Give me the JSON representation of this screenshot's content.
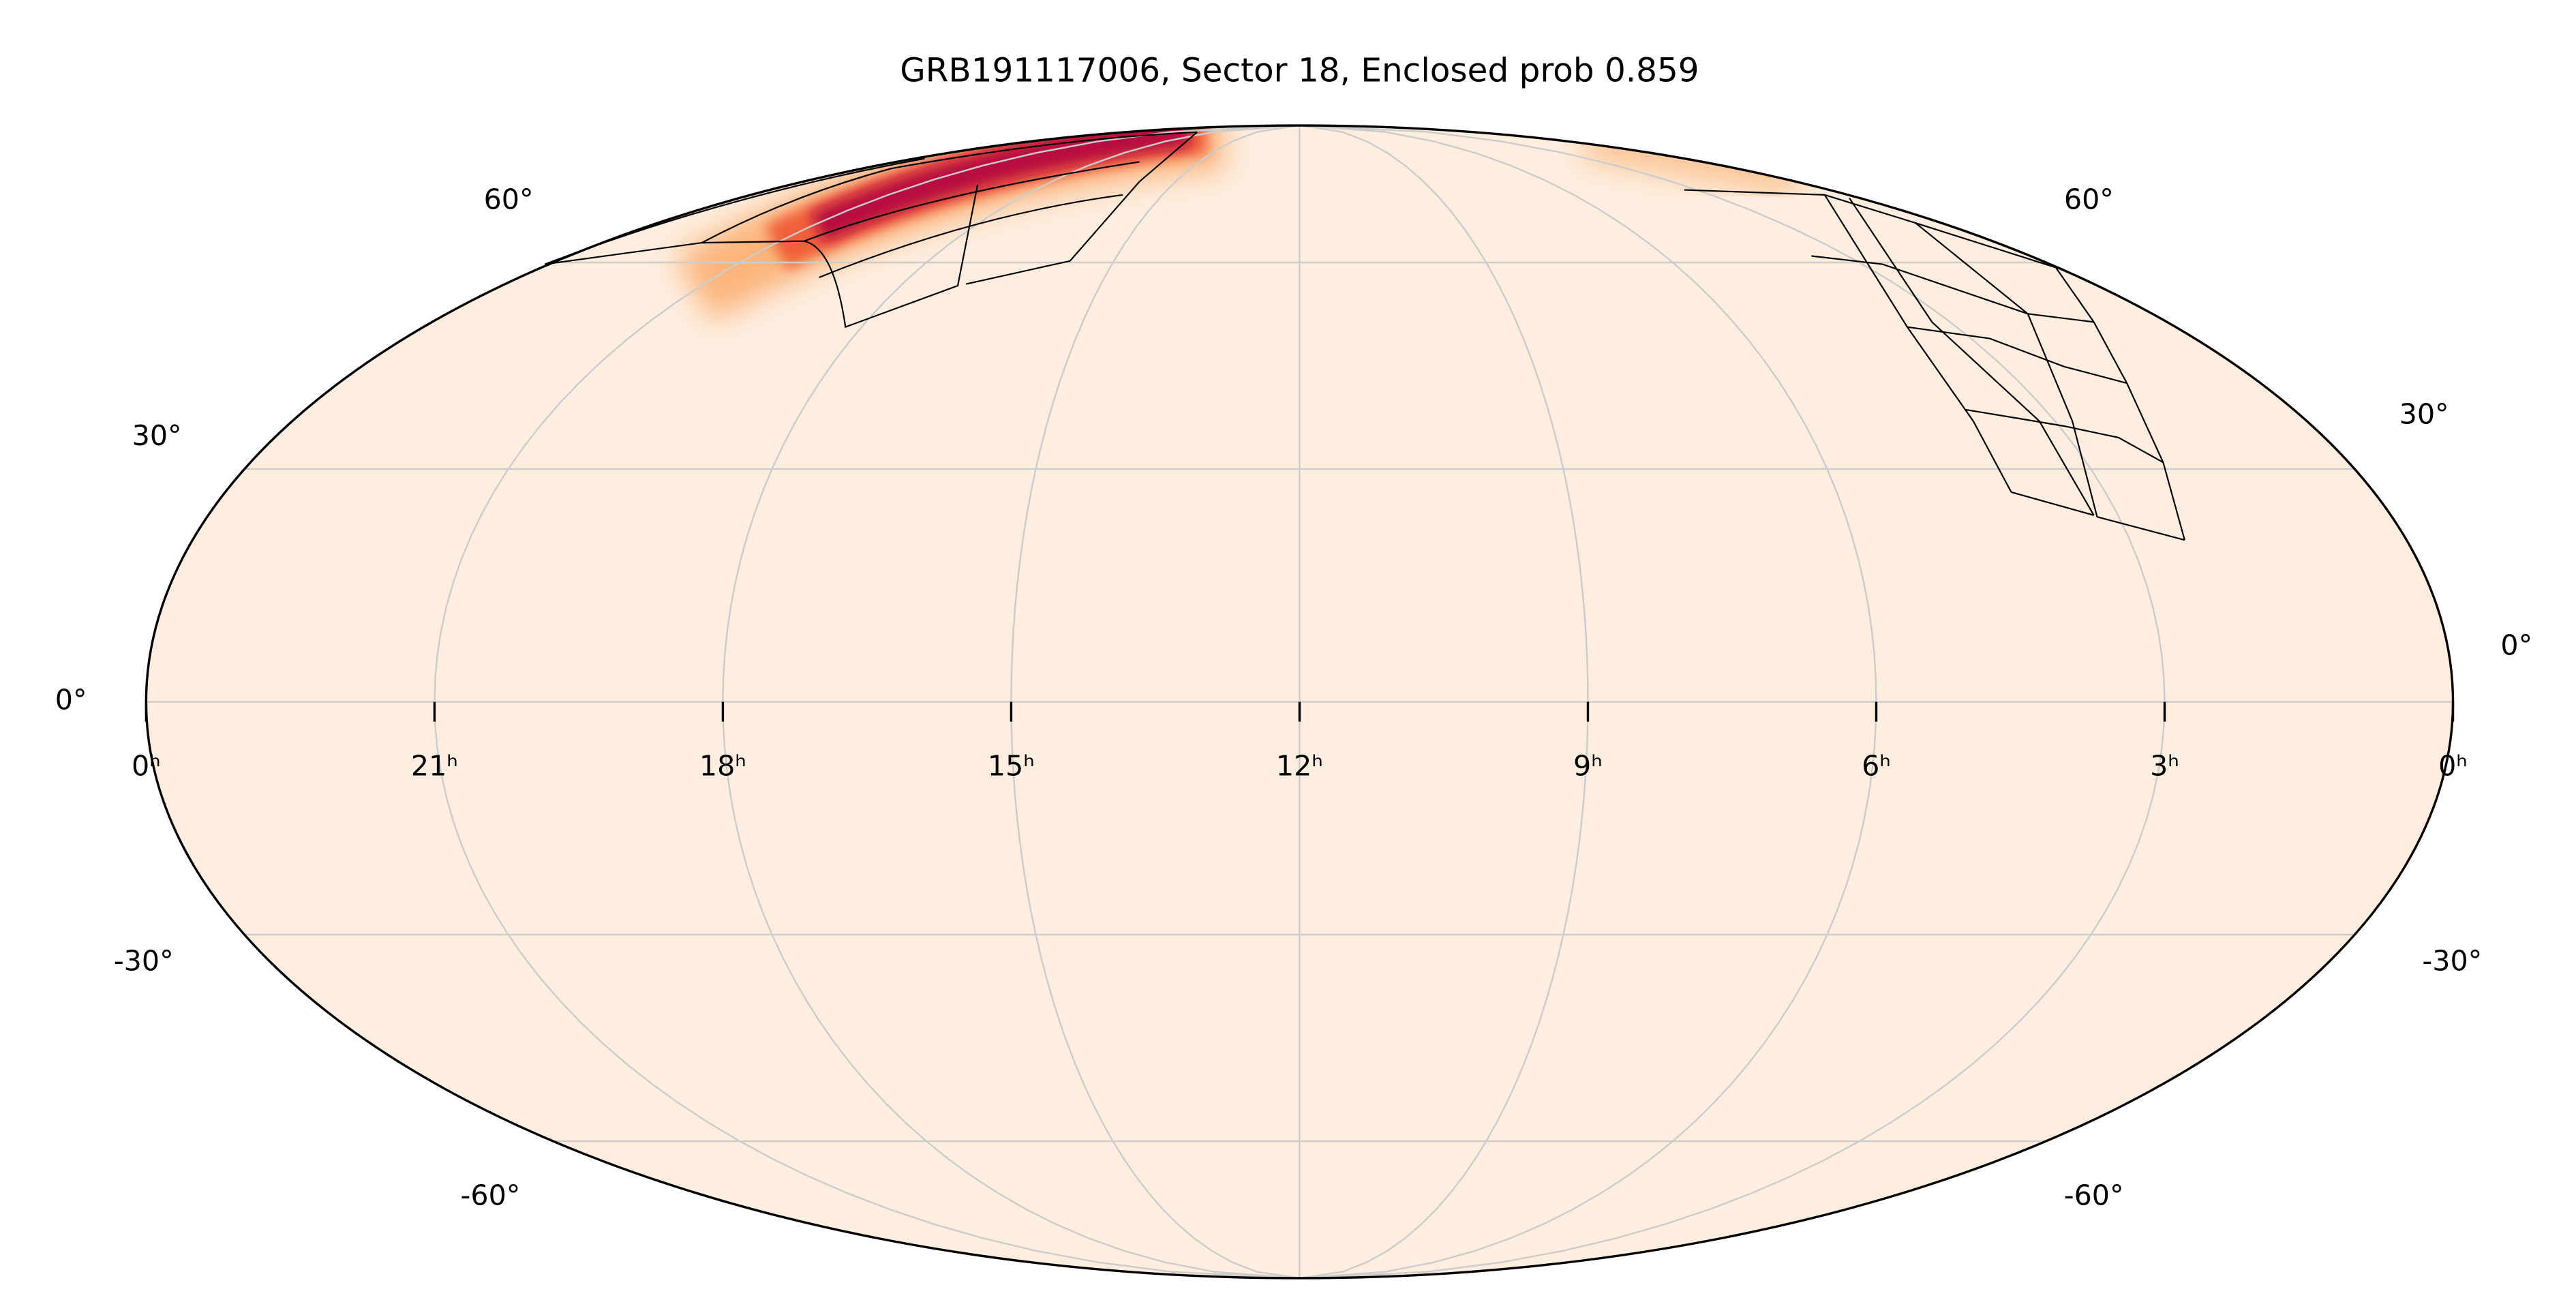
{
  "chart_data": {
    "type": "mollweide",
    "title": "GRB191117006, Sector 18, Enclosed prob 0.859",
    "xlim": [
      24,
      0
    ],
    "xticks": [
      {
        "value": 24,
        "label": "0ʰ"
      },
      {
        "value": 21,
        "label": "21ʰ"
      },
      {
        "value": 18,
        "label": "18ʰ"
      },
      {
        "value": 15,
        "label": "15ʰ"
      },
      {
        "value": 12,
        "label": "12ʰ"
      },
      {
        "value": 9,
        "label": "9ʰ"
      },
      {
        "value": 6,
        "label": "6ʰ"
      },
      {
        "value": 3,
        "label": "3ʰ"
      },
      {
        "value": 0,
        "label": "0ʰ"
      }
    ],
    "ylim": [
      -90,
      90
    ],
    "yticks": [
      {
        "value": 60,
        "label": "60°"
      },
      {
        "value": 30,
        "label": "30°"
      },
      {
        "value": 0,
        "label": "0°"
      },
      {
        "value": -30,
        "label": "-30°"
      },
      {
        "value": -60,
        "label": "-60°"
      }
    ],
    "grid": true,
    "background_color": "#fdeee0",
    "grid_color": "#cccccc"
  }
}
